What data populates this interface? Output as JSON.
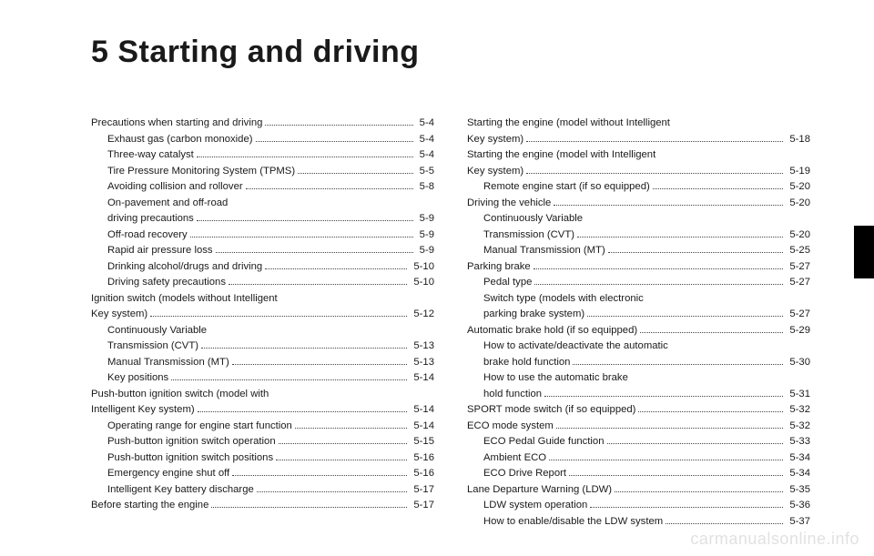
{
  "title": "5 Starting and driving",
  "watermark": "carmanualsonline.info",
  "left": [
    {
      "label": "Precautions when starting and driving",
      "page": "5-4",
      "indent": false
    },
    {
      "label": "Exhaust gas (carbon monoxide)",
      "page": "5-4",
      "indent": true
    },
    {
      "label": "Three-way catalyst",
      "page": "5-4",
      "indent": true
    },
    {
      "label": "Tire Pressure Monitoring System (TPMS)",
      "page": "5-5",
      "indent": true
    },
    {
      "label": "Avoiding collision and rollover",
      "page": "5-8",
      "indent": true
    },
    {
      "label": "On-pavement and off-road",
      "page": "",
      "indent": true,
      "noleader": true
    },
    {
      "label": "driving precautions",
      "page": "5-9",
      "indent": true
    },
    {
      "label": "Off-road recovery",
      "page": "5-9",
      "indent": true
    },
    {
      "label": "Rapid air pressure loss",
      "page": "5-9",
      "indent": true
    },
    {
      "label": "Drinking alcohol/drugs and driving",
      "page": "5-10",
      "indent": true
    },
    {
      "label": "Driving safety precautions",
      "page": "5-10",
      "indent": true
    },
    {
      "label": "Ignition switch (models without Intelligent",
      "page": "",
      "indent": false,
      "noleader": true
    },
    {
      "label": "Key system)",
      "page": "5-12",
      "indent": false
    },
    {
      "label": "Continuously Variable",
      "page": "",
      "indent": true,
      "noleader": true
    },
    {
      "label": "Transmission (CVT)",
      "page": "5-13",
      "indent": true
    },
    {
      "label": "Manual Transmission (MT)",
      "page": "5-13",
      "indent": true
    },
    {
      "label": "Key positions",
      "page": "5-14",
      "indent": true
    },
    {
      "label": "Push-button ignition switch (model with",
      "page": "",
      "indent": false,
      "noleader": true
    },
    {
      "label": "Intelligent Key system)",
      "page": "5-14",
      "indent": false
    },
    {
      "label": "Operating range for engine start function",
      "page": "5-14",
      "indent": true
    },
    {
      "label": "Push-button ignition switch operation",
      "page": "5-15",
      "indent": true
    },
    {
      "label": "Push-button ignition switch positions",
      "page": "5-16",
      "indent": true
    },
    {
      "label": "Emergency engine shut off",
      "page": "5-16",
      "indent": true
    },
    {
      "label": "Intelligent Key battery discharge",
      "page": "5-17",
      "indent": true
    },
    {
      "label": "Before starting the engine",
      "page": "5-17",
      "indent": false
    }
  ],
  "right": [
    {
      "label": "Starting the engine (model without Intelligent",
      "page": "",
      "indent": false,
      "noleader": true
    },
    {
      "label": "Key system)",
      "page": "5-18",
      "indent": false
    },
    {
      "label": "Starting the engine (model with Intelligent",
      "page": "",
      "indent": false,
      "noleader": true
    },
    {
      "label": "Key system)",
      "page": "5-19",
      "indent": false
    },
    {
      "label": "Remote engine start (if so equipped)",
      "page": "5-20",
      "indent": true
    },
    {
      "label": "Driving the vehicle",
      "page": "5-20",
      "indent": false
    },
    {
      "label": "Continuously Variable",
      "page": "",
      "indent": true,
      "noleader": true
    },
    {
      "label": "Transmission (CVT)",
      "page": "5-20",
      "indent": true
    },
    {
      "label": "Manual Transmission (MT)",
      "page": "5-25",
      "indent": true
    },
    {
      "label": "Parking brake",
      "page": "5-27",
      "indent": false
    },
    {
      "label": "Pedal type",
      "page": "5-27",
      "indent": true
    },
    {
      "label": "Switch type (models with electronic",
      "page": "",
      "indent": true,
      "noleader": true
    },
    {
      "label": "parking brake system)",
      "page": "5-27",
      "indent": true
    },
    {
      "label": "Automatic brake hold (if so equipped)",
      "page": "5-29",
      "indent": false
    },
    {
      "label": "How to activate/deactivate the automatic",
      "page": "",
      "indent": true,
      "noleader": true
    },
    {
      "label": "brake hold function",
      "page": "5-30",
      "indent": true
    },
    {
      "label": "How to use the automatic brake",
      "page": "",
      "indent": true,
      "noleader": true
    },
    {
      "label": "hold function",
      "page": "5-31",
      "indent": true
    },
    {
      "label": "SPORT mode switch (if so equipped)",
      "page": "5-32",
      "indent": false
    },
    {
      "label": "ECO mode system",
      "page": "5-32",
      "indent": false
    },
    {
      "label": "ECO Pedal Guide function",
      "page": "5-33",
      "indent": true
    },
    {
      "label": "Ambient ECO",
      "page": "5-34",
      "indent": true
    },
    {
      "label": "ECO Drive Report",
      "page": "5-34",
      "indent": true
    },
    {
      "label": "Lane Departure Warning (LDW)",
      "page": "5-35",
      "indent": false
    },
    {
      "label": "LDW system operation",
      "page": "5-36",
      "indent": true
    },
    {
      "label": "How to enable/disable the LDW system",
      "page": "5-37",
      "indent": true
    }
  ]
}
